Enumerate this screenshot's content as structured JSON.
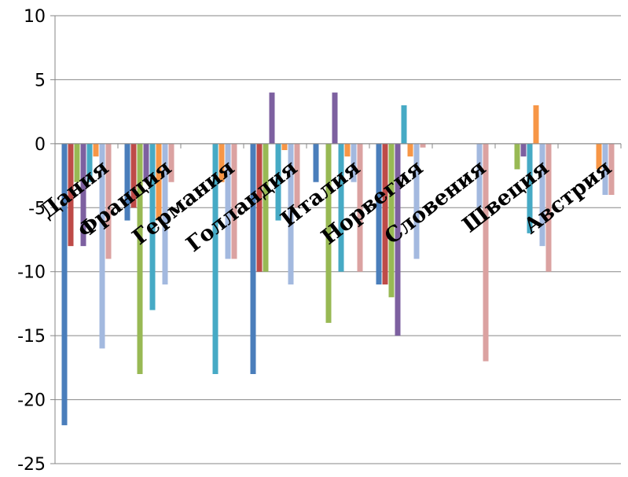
{
  "chart_data": {
    "type": "bar",
    "categories": [
      "Дания",
      "Франция",
      "Германия",
      "Голландия",
      "Италия",
      "Норвегия",
      "Словения",
      "Швеция",
      "Австрия"
    ],
    "ylim": [
      -25,
      10
    ],
    "yticks": [
      10,
      5,
      0,
      -5,
      -10,
      -15,
      -20,
      -25
    ],
    "grid": true,
    "legend": "none",
    "series_colors": [
      "#4a7ebb",
      "#be4b48",
      "#98b954",
      "#7d60a0",
      "#46aac5",
      "#f79646",
      "#a3b9df",
      "#dba2a1"
    ],
    "series": [
      {
        "values": [
          -22,
          -6,
          0,
          -18,
          -3,
          -11,
          0,
          0,
          0
        ]
      },
      {
        "values": [
          -8,
          -5,
          0,
          -10,
          0,
          -11,
          0,
          0,
          0
        ]
      },
      {
        "values": [
          -3,
          -18,
          0,
          -10,
          -14,
          -12,
          0,
          -2,
          0
        ]
      },
      {
        "values": [
          -8,
          -3,
          0,
          4,
          4,
          -15,
          0,
          -1,
          0
        ]
      },
      {
        "values": [
          -3,
          -13,
          -18,
          -6,
          -10,
          3,
          0,
          -7,
          0
        ]
      },
      {
        "values": [
          -1,
          -6,
          -3,
          -0.5,
          -1,
          -1,
          0,
          3,
          -2
        ]
      },
      {
        "values": [
          -16,
          -11,
          -9,
          -11,
          -3,
          -9,
          -5,
          -8,
          -4
        ]
      },
      {
        "values": [
          -9,
          -3,
          -9,
          -5,
          -10,
          -0.3,
          -17,
          -10,
          -4
        ]
      }
    ]
  }
}
